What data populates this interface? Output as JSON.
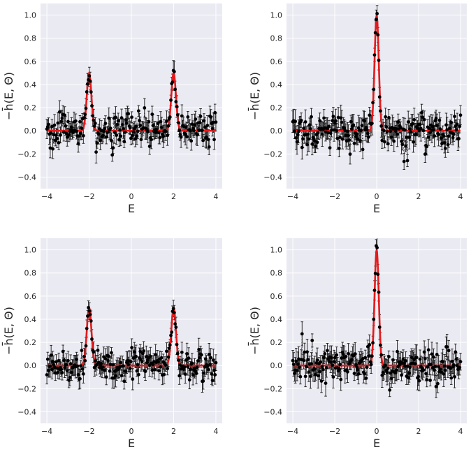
{
  "chart_data": [
    {
      "type": "scatter",
      "xlabel": "E",
      "ylabel": "−h̄(E, Θ)",
      "xlim": [
        -4.3,
        4.3
      ],
      "ylim": [
        -0.5,
        1.1
      ],
      "xticks": [
        "−4",
        "−2",
        "0",
        "2",
        "4"
      ],
      "yticks": [
        "−0.4",
        "−0.2",
        "0.0",
        "0.2",
        "0.4",
        "0.6",
        "0.8",
        "1.0"
      ],
      "grid": true,
      "background": "#eaeaf2",
      "series": [
        {
          "kind": "fit-line",
          "color": "#e41a1c",
          "peaks": [
            {
              "center": -2,
              "height": 0.5
            },
            {
              "center": 2,
              "height": 0.5
            }
          ]
        },
        {
          "kind": "points-with-errorbars",
          "color": "#000000",
          "n_points": 200,
          "noise_sd": 0.07,
          "errorbar_halfwidth": 0.07
        }
      ]
    },
    {
      "type": "scatter",
      "xlabel": "E",
      "ylabel": "−h̄(E, Θ)",
      "xlim": [
        -4.3,
        4.3
      ],
      "ylim": [
        -0.5,
        1.1
      ],
      "xticks": [
        "−4",
        "−2",
        "0",
        "2",
        "4"
      ],
      "yticks": [
        "−0.4",
        "−0.2",
        "0.0",
        "0.2",
        "0.4",
        "0.6",
        "0.8",
        "1.0"
      ],
      "grid": true,
      "background": "#eaeaf2",
      "series": [
        {
          "kind": "fit-line",
          "color": "#e41a1c",
          "peaks": [
            {
              "center": 0,
              "height": 1.0
            }
          ]
        },
        {
          "kind": "points-with-errorbars",
          "color": "#000000",
          "n_points": 200,
          "noise_sd": 0.08,
          "errorbar_halfwidth": 0.08
        }
      ]
    },
    {
      "type": "scatter",
      "xlabel": "E",
      "ylabel": "−h̄(E, Θ)",
      "xlim": [
        -4.3,
        4.3
      ],
      "ylim": [
        -0.5,
        1.1
      ],
      "xticks": [
        "−4",
        "−2",
        "0",
        "2",
        "4"
      ],
      "yticks": [
        "−0.4",
        "−0.2",
        "0.0",
        "0.2",
        "0.4",
        "0.6",
        "0.8",
        "1.0"
      ],
      "grid": true,
      "background": "#eaeaf2",
      "series": [
        {
          "kind": "fit-line",
          "color": "#e41a1c",
          "peaks": [
            {
              "center": -2,
              "height": 0.5
            },
            {
              "center": 2,
              "height": 0.5
            }
          ]
        },
        {
          "kind": "points-with-errorbars",
          "color": "#000000",
          "n_points": 200,
          "noise_sd": 0.07,
          "errorbar_halfwidth": 0.07
        }
      ]
    },
    {
      "type": "scatter",
      "xlabel": "E",
      "ylabel": "−h̄(E, Θ)",
      "xlim": [
        -4.3,
        4.3
      ],
      "ylim": [
        -0.5,
        1.1
      ],
      "xticks": [
        "−4",
        "−2",
        "0",
        "2",
        "4"
      ],
      "yticks": [
        "−0.4",
        "−0.2",
        "0.0",
        "0.2",
        "0.4",
        "0.6",
        "0.8",
        "1.0"
      ],
      "grid": true,
      "background": "#eaeaf2",
      "series": [
        {
          "kind": "fit-line",
          "color": "#e41a1c",
          "peaks": [
            {
              "center": 0,
              "height": 1.0
            }
          ]
        },
        {
          "kind": "points-with-errorbars",
          "color": "#000000",
          "n_points": 200,
          "noise_sd": 0.08,
          "errorbar_halfwidth": 0.08
        }
      ]
    }
  ]
}
